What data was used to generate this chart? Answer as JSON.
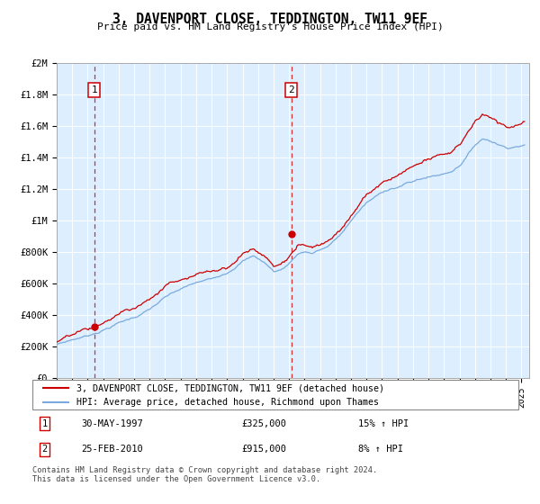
{
  "title": "3, DAVENPORT CLOSE, TEDDINGTON, TW11 9EF",
  "subtitle": "Price paid vs. HM Land Registry's House Price Index (HPI)",
  "legend_line1": "3, DAVENPORT CLOSE, TEDDINGTON, TW11 9EF (detached house)",
  "legend_line2": "HPI: Average price, detached house, Richmond upon Thames",
  "transaction1_date": "30-MAY-1997",
  "transaction1_price": "£325,000",
  "transaction1_hpi": "15% ↑ HPI",
  "transaction2_date": "25-FEB-2010",
  "transaction2_price": "£915,000",
  "transaction2_hpi": "8% ↑ HPI",
  "footer": "Contains HM Land Registry data © Crown copyright and database right 2024.\nThis data is licensed under the Open Government Licence v3.0.",
  "hpi_color": "#7aaadd",
  "price_color": "#cc0000",
  "bg_color": "#ddeeff",
  "grid_color": "#ffffff",
  "vline_color": "#cc0000",
  "ylim_min": 0,
  "ylim_max": 2000000,
  "yticks": [
    0,
    200000,
    400000,
    600000,
    800000,
    1000000,
    1200000,
    1400000,
    1600000,
    1800000,
    2000000
  ],
  "ytick_labels": [
    "£0",
    "£200K",
    "£400K",
    "£600K",
    "£800K",
    "£1M",
    "£1.2M",
    "£1.4M",
    "£1.6M",
    "£1.8M",
    "£2M"
  ],
  "xmin": 1995.0,
  "xmax": 2025.5,
  "transaction1_x": 1997.42,
  "transaction1_y": 325000,
  "transaction2_x": 2010.15,
  "transaction2_y": 915000
}
